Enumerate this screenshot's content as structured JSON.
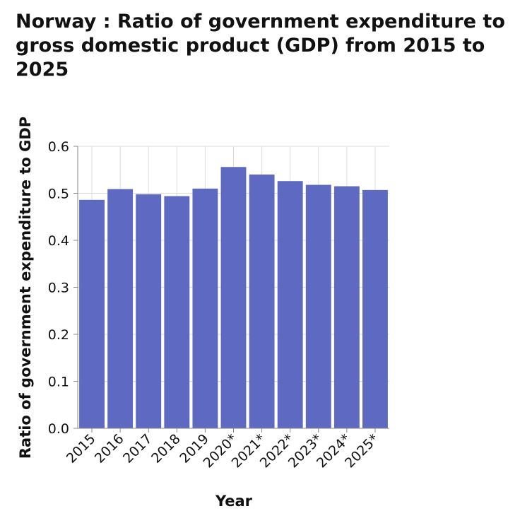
{
  "chart_data": {
    "type": "bar",
    "title": "Norway : Ratio of government expenditure to gross domestic product (GDP) from 2015 to 2025",
    "xlabel": "Year",
    "ylabel": "Ratio of government expenditure to GDP",
    "categories": [
      "2015",
      "2016",
      "2017",
      "2018",
      "2019",
      "2020*",
      "2021*",
      "2022*",
      "2023*",
      "2024*",
      "2025*"
    ],
    "values": [
      0.486,
      0.509,
      0.498,
      0.494,
      0.51,
      0.556,
      0.54,
      0.526,
      0.518,
      0.515,
      0.507
    ],
    "ylim": [
      0,
      0.6
    ],
    "yticks": [
      "0.0",
      "0.1",
      "0.2",
      "0.3",
      "0.4",
      "0.5",
      "0.6"
    ],
    "grid": true,
    "bar_color": "#5e69c1",
    "grid_color": "#dddddd"
  }
}
